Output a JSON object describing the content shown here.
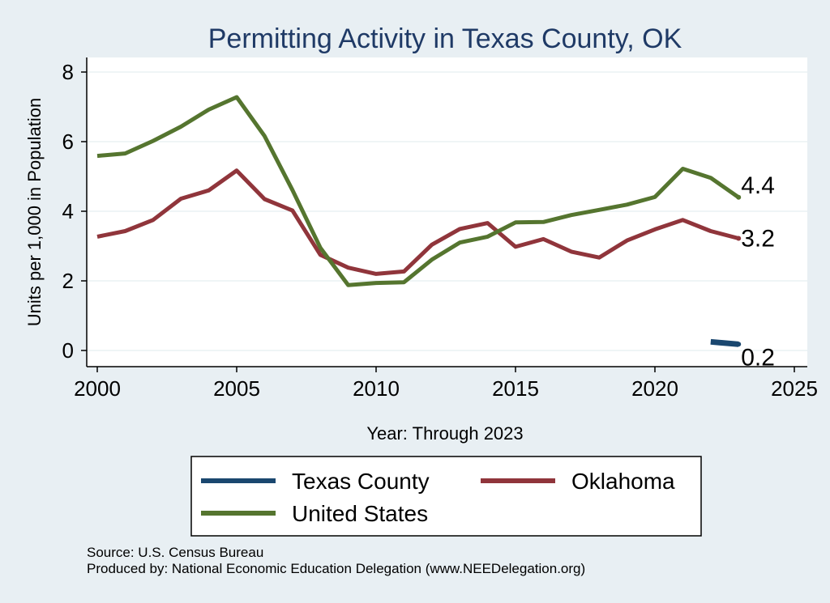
{
  "chart_data": {
    "type": "line",
    "title": "Permitting Activity in Texas County, OK",
    "xlabel": "Year: Through 2023",
    "ylabel": "Units per 1,000 in Population",
    "xlim": [
      2000,
      2025
    ],
    "ylim": [
      0,
      8
    ],
    "x_ticks": [
      "2000",
      "2005",
      "2010",
      "2015",
      "2020",
      "2025"
    ],
    "y_ticks": [
      "0",
      "2",
      "4",
      "6",
      "8"
    ],
    "grid": true,
    "legend_position": "bottom",
    "series": [
      {
        "name": "Texas County",
        "color": "#1a476f",
        "x": [
          2022,
          2023
        ],
        "values": [
          0.25,
          0.18
        ],
        "end_label": "0.2"
      },
      {
        "name": "Oklahoma",
        "color": "#90353b",
        "x": [
          2000,
          2001,
          2002,
          2003,
          2004,
          2005,
          2006,
          2007,
          2008,
          2009,
          2010,
          2011,
          2012,
          2013,
          2014,
          2015,
          2016,
          2017,
          2018,
          2019,
          2020,
          2021,
          2022,
          2023
        ],
        "values": [
          3.27,
          3.43,
          3.75,
          4.36,
          4.6,
          5.17,
          4.35,
          4.02,
          2.75,
          2.38,
          2.2,
          2.27,
          3.04,
          3.49,
          3.66,
          2.98,
          3.2,
          2.84,
          2.67,
          3.16,
          3.48,
          3.75,
          3.43,
          3.22
        ],
        "end_label": "3.2"
      },
      {
        "name": "United States",
        "color": "#55752f",
        "x": [
          2000,
          2001,
          2002,
          2003,
          2004,
          2005,
          2006,
          2007,
          2008,
          2009,
          2010,
          2011,
          2012,
          2013,
          2014,
          2015,
          2016,
          2017,
          2018,
          2019,
          2020,
          2021,
          2022,
          2023
        ],
        "values": [
          5.59,
          5.66,
          6.02,
          6.43,
          6.92,
          7.28,
          6.16,
          4.61,
          2.95,
          1.88,
          1.94,
          1.96,
          2.61,
          3.1,
          3.27,
          3.68,
          3.69,
          3.89,
          4.04,
          4.19,
          4.41,
          5.22,
          4.96,
          4.4
        ],
        "end_label": "4.4"
      }
    ],
    "legend_order": [
      "Texas County",
      "Oklahoma",
      "United States"
    ]
  },
  "footer": {
    "source": "Source: U.S. Census Bureau",
    "produced_by": "Produced by: National Economic Education Delegation (www.NEEDelegation.org)"
  },
  "colors": {
    "page_background": "#e8eff3",
    "plot_background": "#ffffff",
    "grid": "#eaf2f3",
    "title": "#1f3a66"
  }
}
